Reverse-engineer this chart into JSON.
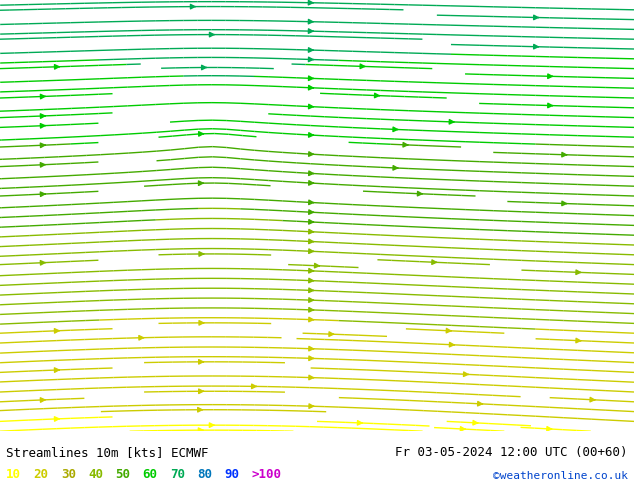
{
  "title_left": "Streamlines 10m [kts] ECMWF",
  "title_right": "Fr 03-05-2024 12:00 UTC (00+60)",
  "credit": "©weatheronline.co.uk",
  "legend_values": [
    "10",
    "20",
    "30",
    "40",
    "50",
    "60",
    "70",
    "80",
    "90",
    ">100"
  ],
  "legend_colors": [
    "#ffff00",
    "#cccc00",
    "#aaaa00",
    "#88cc00",
    "#44aa00",
    "#00cc00",
    "#00aa44",
    "#0088aa",
    "#0044ff",
    "#ff00ff"
  ],
  "speed_colors": {
    "10": "#ffff00",
    "20": "#dddd00",
    "30": "#aaaa00",
    "40": "#88bb00",
    "50": "#55aa00",
    "60": "#00bb00",
    "70": "#00aa55",
    "80": "#0077bb",
    "90": "#0033ff",
    "100": "#cc00cc"
  },
  "bg_ocean": "#d0d8e8",
  "bg_land_gray": "#e8e8e8",
  "bg_land_green": "#c8e8b0",
  "border_color": "#888888",
  "lon_min": -25,
  "lon_max": 20,
  "lat_min": 35,
  "lat_max": 65,
  "figsize": [
    6.34,
    4.9
  ],
  "dpi": 100
}
